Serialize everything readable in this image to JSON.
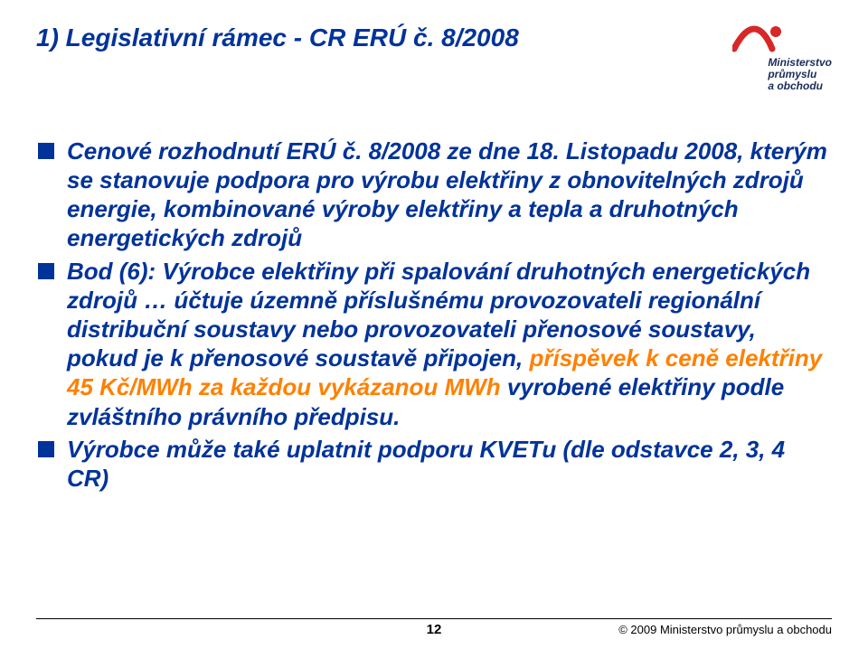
{
  "colors": {
    "primary": "#003399",
    "emphasis": "#ff8000",
    "background": "#ffffff",
    "logo_red": "#d62828",
    "logo_dark": "#1b2d5a",
    "text": "#000000"
  },
  "typography": {
    "title_fontsize_pt": 21,
    "body_fontsize_pt": 20,
    "footer_fontsize_pt": 10,
    "font_family": "Arial",
    "title_style": "bold italic",
    "body_style": "bold italic"
  },
  "header": {
    "title": "1) Legislativní rámec - CR ERÚ č. 8/2008",
    "logo": {
      "line1": "Ministerstvo",
      "line2": "průmyslu",
      "line3": "a obchodu"
    }
  },
  "bullets": [
    {
      "segments": [
        {
          "text": "Cenové rozhodnutí ERÚ č. 8/2008 ze dne 18. Listopadu 2008, kterým se stanovuje podpora pro výrobu elektřiny z obnovitelných zdrojů energie, kombinované výroby elektřiny a tepla a druhotných energetických zdrojů",
          "emph": false
        }
      ]
    },
    {
      "segments": [
        {
          "text": "Bod (6): Výrobce elektřiny při spalování druhotných energetických zdrojů … účtuje územně příslušnému provozovateli regionální distribuční soustavy  nebo provozovateli přenosové soustavy, pokud je k přenosové soustavě připojen, ",
          "emph": false
        },
        {
          "text": "příspěvek k ceně elektřiny 45 Kč/MWh za každou vykázanou MWh",
          "emph": true
        },
        {
          "text": " vyrobené elektřiny podle zvláštního právního předpisu.",
          "emph": false
        }
      ]
    },
    {
      "segments": [
        {
          "text": "Výrobce může také uplatnit podporu KVETu (dle odstavce 2, 3, 4 CR)",
          "emph": false
        }
      ]
    }
  ],
  "footer": {
    "page": "12",
    "copyright": "© 2009 Ministerstvo průmyslu a obchodu"
  }
}
